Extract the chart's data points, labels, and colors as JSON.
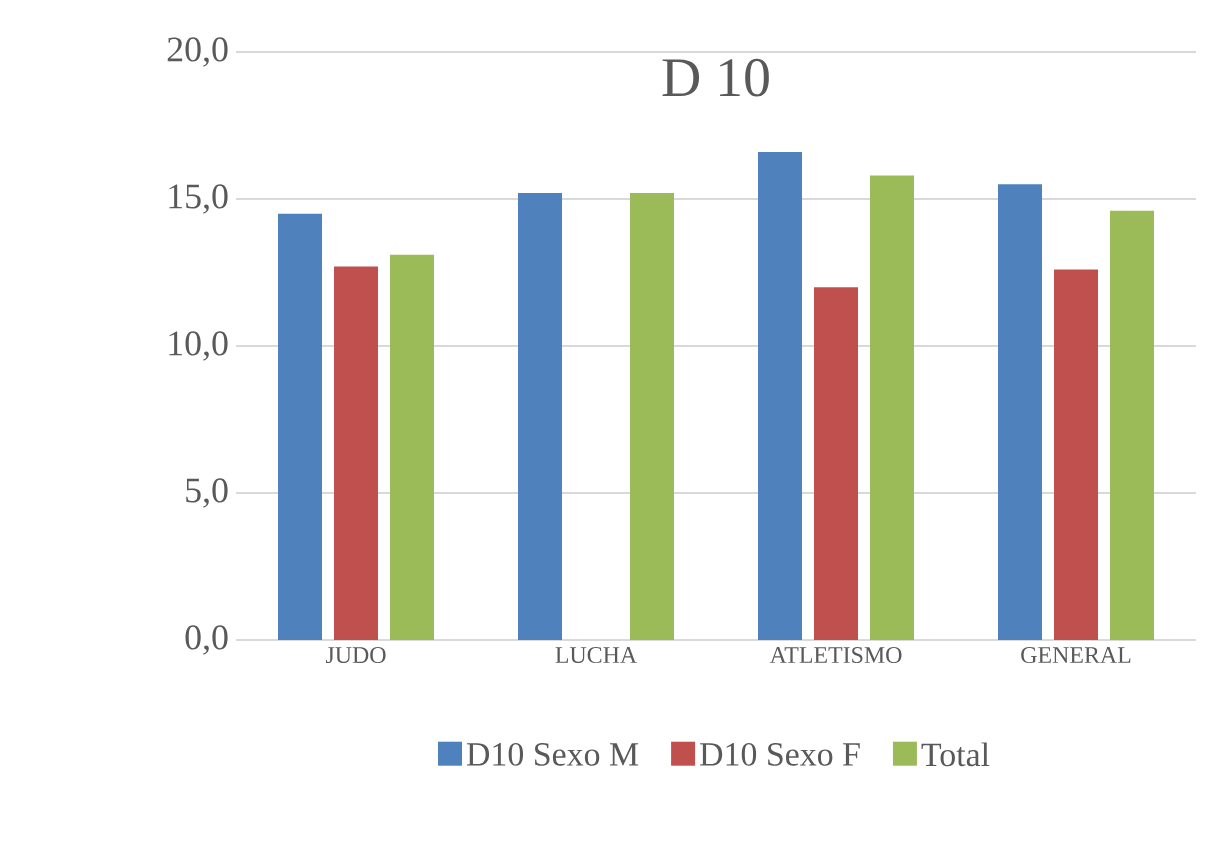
{
  "chart_data": {
    "type": "bar",
    "title": "D 10",
    "categories": [
      "JUDO",
      "LUCHA",
      "ATLETISMO",
      "GENERAL"
    ],
    "series": [
      {
        "name": "D10 Sexo M",
        "color": "#4f81bd",
        "values": [
          14.5,
          15.2,
          16.6,
          15.5
        ]
      },
      {
        "name": "D10 Sexo F",
        "color": "#c0504d",
        "values": [
          12.7,
          null,
          12.0,
          12.6
        ]
      },
      {
        "name": "Total",
        "color": "#9bbb59",
        "values": [
          13.1,
          15.2,
          15.8,
          14.6
        ]
      }
    ],
    "ylim": [
      0,
      20
    ],
    "yticks": [
      {
        "value": 0,
        "label": "0,0"
      },
      {
        "value": 5,
        "label": "5,0"
      },
      {
        "value": 10,
        "label": "10,0"
      },
      {
        "value": 15,
        "label": "15,0"
      },
      {
        "value": 20,
        "label": "20,0"
      }
    ],
    "grid": "y",
    "legend": "bottom"
  }
}
